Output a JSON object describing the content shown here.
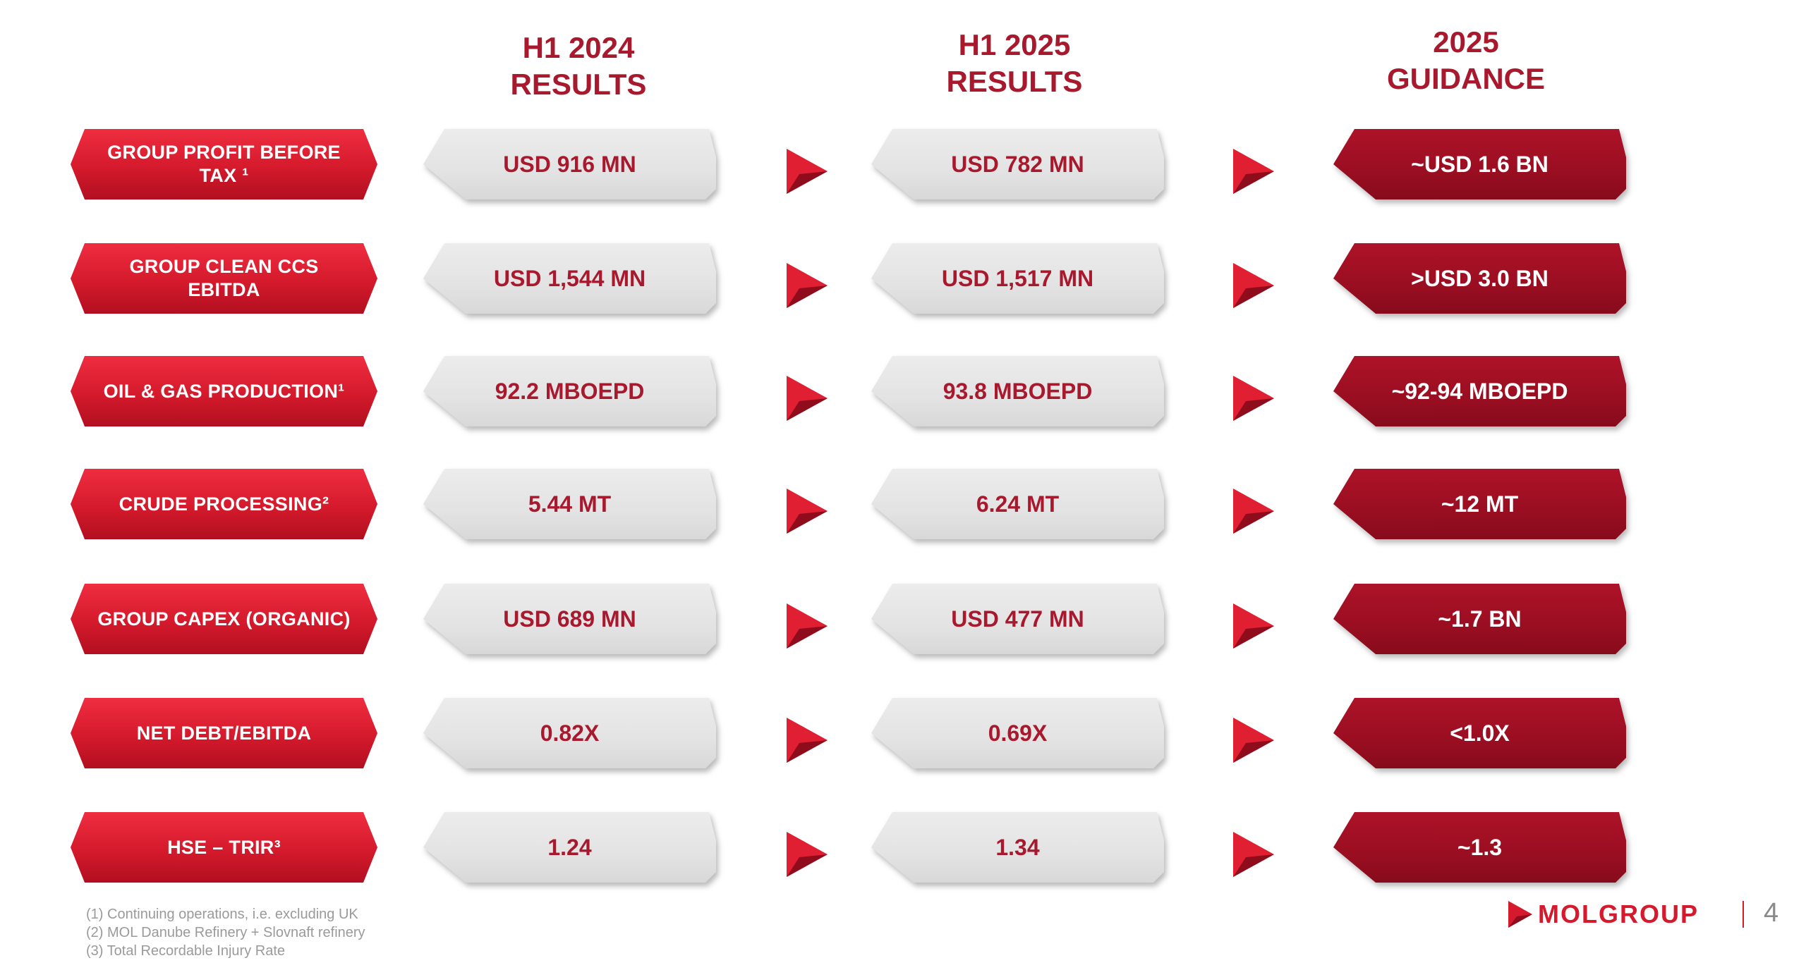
{
  "columns": {
    "h1_2024": [
      "H1 2024",
      "RESULTS"
    ],
    "h1_2025": [
      "H1 2025",
      "RESULTS"
    ],
    "guidance": [
      "2025",
      "GUIDANCE"
    ]
  },
  "rows": [
    {
      "label": "GROUP PROFIT BEFORE TAX ¹",
      "h1_2024": "USD 916 MN",
      "h1_2025": "USD 782 MN",
      "guidance": "~USD 1.6 BN"
    },
    {
      "label": "GROUP CLEAN CCS EBITDA",
      "h1_2024": "USD 1,544 MN",
      "h1_2025": "USD 1,517 MN",
      "guidance": ">USD 3.0 BN"
    },
    {
      "label": "OIL & GAS PRODUCTION¹",
      "h1_2024": "92.2 MBOEPD",
      "h1_2025": "93.8 MBOEPD",
      "guidance": "~92-94 MBOEPD"
    },
    {
      "label": "CRUDE PROCESSING²",
      "h1_2024": "5.44 MT",
      "h1_2025": "6.24 MT",
      "guidance": "~12 MT"
    },
    {
      "label": "GROUP CAPEX (ORGANIC)",
      "h1_2024": "USD 689 MN",
      "h1_2025": "USD 477 MN",
      "guidance": "~1.7 BN"
    },
    {
      "label": "NET DEBT/EBITDA",
      "h1_2024": "0.82X",
      "h1_2025": "0.69X",
      "guidance": "<1.0X"
    },
    {
      "label": "HSE – TRIR³",
      "h1_2024": "1.24",
      "h1_2025": "1.34",
      "guidance": "~1.3"
    }
  ],
  "footnotes": [
    "(1) Continuing operations, i.e. excluding UK",
    "(2) MOL Danube Refinery + Slovnaft refinery",
    "(3) Total Recordable Injury Rate"
  ],
  "brand": {
    "logo_text": "MOLGROUP",
    "page_number": "4",
    "accent": "#d41a2c",
    "dark_accent": "#9a0e21"
  },
  "icons": {
    "row_arrow": "play-triangle-icon",
    "logo_mark": "mol-triangle-icon"
  }
}
